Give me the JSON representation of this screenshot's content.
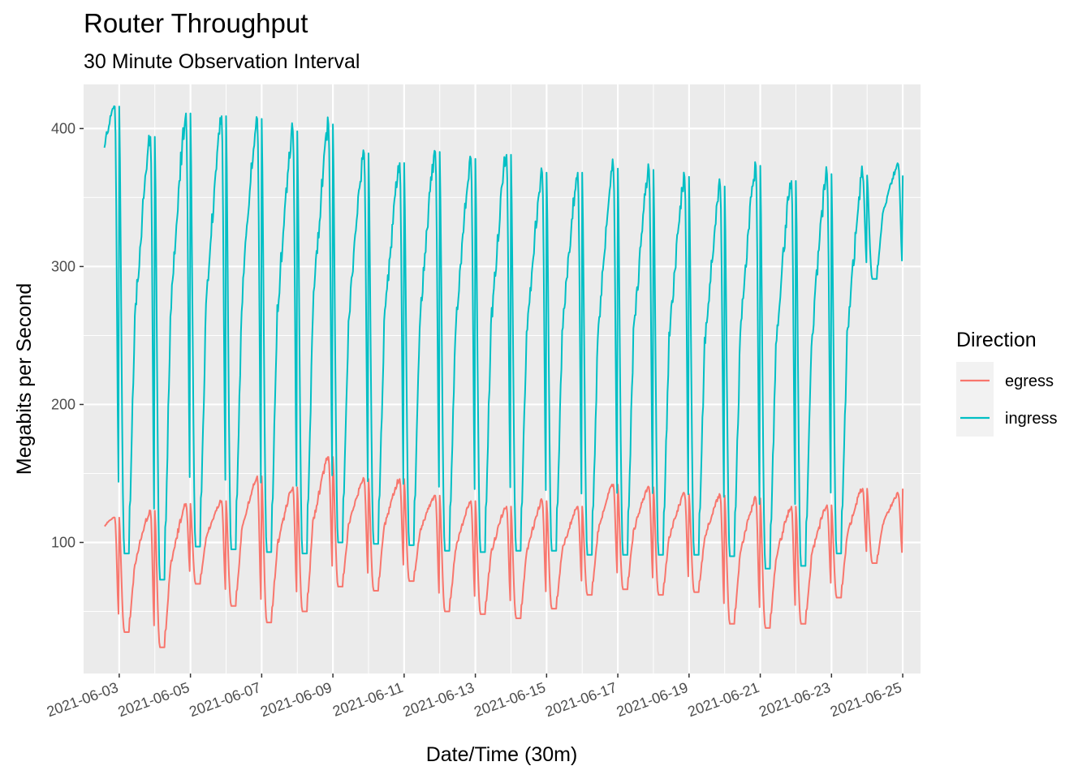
{
  "chart_data": {
    "type": "line",
    "title": "Router Throughput",
    "subtitle": "30 Minute Observation Interval",
    "xlabel": "Date/Time (30m)",
    "ylabel": "Megabits per Second",
    "x_range": [
      "2021-06-02",
      "2021-06-25.5"
    ],
    "ylim": [
      5,
      432
    ],
    "y_ticks": [
      100,
      200,
      300,
      400
    ],
    "x_ticks": [
      "2021-06-03",
      "2021-06-05",
      "2021-06-07",
      "2021-06-09",
      "2021-06-11",
      "2021-06-13",
      "2021-06-15",
      "2021-06-17",
      "2021-06-19",
      "2021-06-21",
      "2021-06-23",
      "2021-06-25"
    ],
    "grid": true,
    "legend": {
      "title": "Direction",
      "position": "right"
    },
    "x_start": "2021-06-02T14:00",
    "x_end": "2021-06-25T00:00",
    "series": [
      {
        "name": "egress",
        "color": "#F8766D",
        "daily_peak_date": [
          "2021-06-02",
          "2021-06-03",
          "2021-06-04",
          "2021-06-05",
          "2021-06-06",
          "2021-06-07",
          "2021-06-08",
          "2021-06-09",
          "2021-06-10",
          "2021-06-11",
          "2021-06-12",
          "2021-06-13",
          "2021-06-14",
          "2021-06-15",
          "2021-06-16",
          "2021-06-17",
          "2021-06-18",
          "2021-06-19",
          "2021-06-20",
          "2021-06-21",
          "2021-06-22",
          "2021-06-23",
          "2021-06-24"
        ],
        "daily_peak": [
          118,
          123,
          128,
          130,
          148,
          140,
          162,
          146,
          146,
          134,
          130,
          126,
          130,
          126,
          142,
          140,
          135,
          134,
          132,
          126,
          127,
          139,
          135
        ],
        "daily_trough": [
          96,
          35,
          24,
          70,
          54,
          42,
          50,
          68,
          65,
          72,
          50,
          48,
          45,
          52,
          62,
          66,
          62,
          64,
          41,
          38,
          41,
          60,
          85
        ]
      },
      {
        "name": "ingress",
        "color": "#00BFC4",
        "daily_peak_date": [
          "2021-06-02",
          "2021-06-03",
          "2021-06-04",
          "2021-06-05",
          "2021-06-06",
          "2021-06-07",
          "2021-06-08",
          "2021-06-09",
          "2021-06-10",
          "2021-06-11",
          "2021-06-12",
          "2021-06-13",
          "2021-06-14",
          "2021-06-15",
          "2021-06-16",
          "2021-06-17",
          "2021-06-18",
          "2021-06-19",
          "2021-06-20",
          "2021-06-21",
          "2021-06-22",
          "2021-06-23",
          "2021-06-24"
        ],
        "daily_peak": [
          416,
          394,
          411,
          409,
          407,
          398,
          403,
          382,
          375,
          383,
          378,
          381,
          368,
          368,
          371,
          370,
          365,
          358,
          373,
          362,
          367,
          366,
          374
        ],
        "daily_trough": [
          310,
          92,
          73,
          97,
          95,
          93,
          92,
          100,
          99,
          98,
          94,
          93,
          94,
          94,
          91,
          91,
          91,
          91,
          90,
          81,
          83,
          92,
          291
        ]
      }
    ]
  }
}
